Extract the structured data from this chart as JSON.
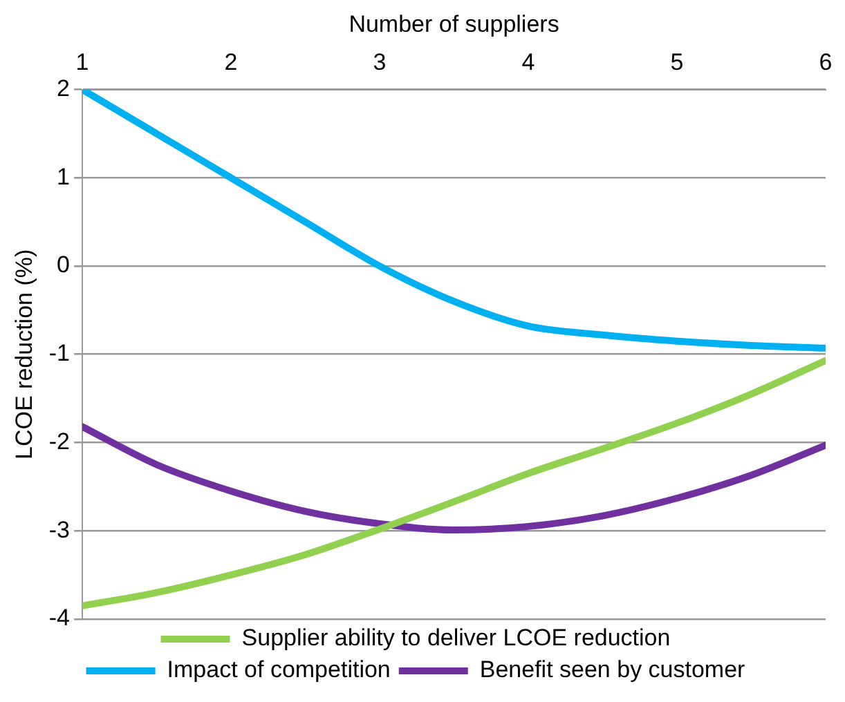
{
  "chart_data": {
    "type": "line",
    "xlabel": "Number of suppliers",
    "ylabel": "LCOE reduction (%)",
    "x": [
      1,
      1.5,
      2,
      2.5,
      3,
      3.5,
      4,
      4.5,
      5,
      5.5,
      6
    ],
    "xlim": [
      1,
      6
    ],
    "xticks": [
      1,
      2,
      3,
      4,
      5,
      6
    ],
    "ylim": [
      -4,
      2
    ],
    "yticks": [
      -4,
      -3,
      -2,
      -1,
      0,
      1,
      2
    ],
    "grid": "y",
    "legend": "bottom",
    "marker": "none",
    "line_style": "solid",
    "series": [
      {
        "name": "Supplier ability to deliver LCOE reduction",
        "color": "#92d050",
        "values": [
          -3.85,
          -3.7,
          -3.5,
          -3.27,
          -2.98,
          -2.67,
          -2.35,
          -2.07,
          -1.78,
          -1.45,
          -1.07
        ]
      },
      {
        "name": "Impact of competition",
        "color": "#00b0f0",
        "values": [
          2.0,
          1.5,
          1.0,
          0.5,
          0.0,
          -0.4,
          -0.68,
          -0.78,
          -0.85,
          -0.9,
          -0.93
        ]
      },
      {
        "name": "Benefit seen by customer",
        "color": "#7030a0",
        "values": [
          -1.82,
          -2.25,
          -2.55,
          -2.78,
          -2.92,
          -2.99,
          -2.95,
          -2.83,
          -2.63,
          -2.37,
          -2.03
        ]
      }
    ]
  }
}
